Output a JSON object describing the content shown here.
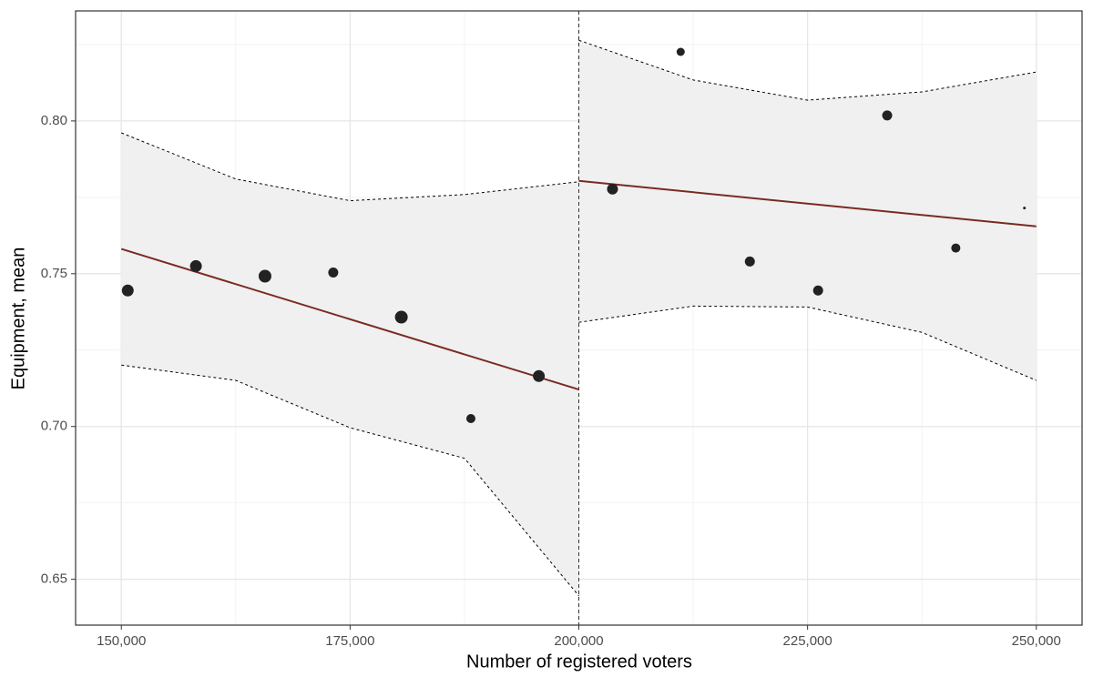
{
  "chart_data": {
    "type": "scatter",
    "x_label": "Number of registered voters",
    "y_label": "Equipment, mean",
    "xlim": [
      145000,
      255000
    ],
    "ylim": [
      0.635,
      0.836
    ],
    "xticks": [
      {
        "value": 150000,
        "label": "150,000"
      },
      {
        "value": 175000,
        "label": "175,000"
      },
      {
        "value": 200000,
        "label": "200,000"
      },
      {
        "value": 225000,
        "label": "225,000"
      },
      {
        "value": 250000,
        "label": "250,000"
      }
    ],
    "yticks": [
      0.65,
      {
        "value": 0.7,
        "label": "0.70"
      },
      0.75,
      {
        "value": 0.8,
        "label": "0.80"
      }
    ],
    "x_minor_grid": [
      162500,
      187500,
      212500,
      237500
    ],
    "y_minor_grid": [
      0.675,
      0.725,
      0.775,
      0.825
    ],
    "grid": true,
    "cutoff": 200000,
    "series": [
      {
        "name": "bins",
        "color": "#222222",
        "x": [
          150700,
          158150,
          165700,
          173160,
          180600,
          188200,
          195630,
          203680,
          211130,
          218690,
          226150,
          233700,
          241200,
          248700
        ],
        "values": [
          0.7445,
          0.7525,
          0.7492,
          0.7504,
          0.7358,
          0.7026,
          0.7165,
          0.7777,
          0.8226,
          0.754,
          0.7445,
          0.8018,
          0.7584,
          0.7715
        ],
        "sizes": [
          6.5,
          6.5,
          7,
          5.5,
          7,
          5,
          6.5,
          6,
          4.5,
          5.5,
          5.5,
          5.5,
          5,
          1.5
        ]
      }
    ],
    "fits": [
      {
        "color": "#7b2a22",
        "x": [
          150000,
          200000
        ],
        "values": [
          0.7581,
          0.7121
        ]
      },
      {
        "color": "#7b2a22",
        "x": [
          200000,
          250000
        ],
        "values": [
          0.7804,
          0.7655
        ]
      }
    ],
    "bands": [
      {
        "x": [
          150000,
          162500,
          175000,
          187500,
          200000
        ],
        "upper": [
          0.7961,
          0.781,
          0.7739,
          0.7759,
          0.7801
        ],
        "lower": [
          0.7201,
          0.7151,
          0.6996,
          0.6896,
          0.6446
        ]
      },
      {
        "x": [
          200000,
          212500,
          225000,
          237500,
          250000
        ],
        "upper": [
          0.8264,
          0.8134,
          0.8068,
          0.8095,
          0.816
        ],
        "lower": [
          0.7341,
          0.7394,
          0.7391,
          0.7308,
          0.7151
        ]
      }
    ]
  }
}
